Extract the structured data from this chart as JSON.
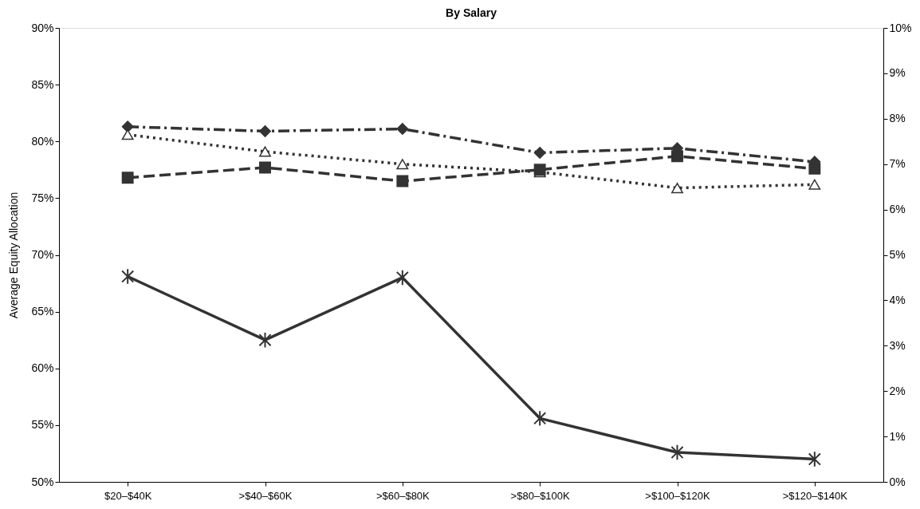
{
  "chart_data": {
    "type": "line",
    "title": "By Salary",
    "ylabel": "Average Equity Allocation",
    "categories": [
      "$20–$40K",
      ">$40–$60K",
      ">$60–$80K",
      ">$80–$100K",
      ">$100–$120K",
      ">$120–$140K"
    ],
    "series": [
      {
        "color": "#333333",
        "marker": "diamond",
        "line_style": "dashdot",
        "values": [
          81.3,
          80.9,
          81.1,
          79.0,
          79.4,
          78.2
        ]
      },
      {
        "color": "#333333",
        "marker": "triangle",
        "line_style": "dotted",
        "values": [
          80.6,
          79.1,
          78.0,
          77.3,
          75.9,
          76.2
        ]
      },
      {
        "color": "#333333",
        "marker": "square",
        "line_style": "dashed",
        "values": [
          76.8,
          77.7,
          76.5,
          77.5,
          78.7,
          77.6
        ]
      },
      {
        "color": "#333333",
        "marker": "cross",
        "line_style": "solid",
        "values": [
          68.1,
          62.5,
          68.0,
          55.6,
          52.6,
          52.0
        ]
      }
    ],
    "ylim": [
      50,
      90
    ],
    "yticks": [
      {
        "value": 50,
        "label": "50%"
      },
      {
        "value": 55,
        "label": "55%"
      },
      {
        "value": 60,
        "label": "60%"
      },
      {
        "value": 65,
        "label": "65%"
      },
      {
        "value": 70,
        "label": "70%"
      },
      {
        "value": 75,
        "label": "75%"
      },
      {
        "value": 80,
        "label": "80%"
      },
      {
        "value": 85,
        "label": "85%"
      },
      {
        "value": 90,
        "label": "90%"
      }
    ],
    "y2lim": [
      0,
      10
    ],
    "y2ticks": [
      {
        "value": 0,
        "label": "0%"
      },
      {
        "value": 1,
        "label": "1%"
      },
      {
        "value": 2,
        "label": "2%"
      },
      {
        "value": 3,
        "label": "3%"
      },
      {
        "value": 4,
        "label": "4%"
      },
      {
        "value": 5,
        "label": "5%"
      },
      {
        "value": 6,
        "label": "6%"
      },
      {
        "value": 7,
        "label": "7%"
      },
      {
        "value": 8,
        "label": "8%"
      },
      {
        "value": 9,
        "label": "9%"
      },
      {
        "value": 10,
        "label": "10%"
      }
    ],
    "grid": false
  }
}
